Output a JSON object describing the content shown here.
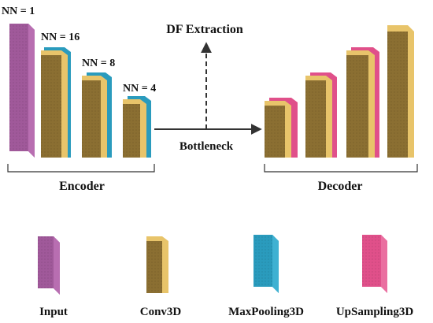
{
  "diagram": {
    "encoder_label": "Encoder",
    "decoder_label": "Decoder",
    "bottleneck_label": "Bottleneck",
    "df_extraction_label": "DF Extraction",
    "nn_labels": [
      "NN = 1",
      "NN = 16",
      "NN = 8",
      "NN = 4"
    ]
  },
  "legend": [
    {
      "name": "Input",
      "color": "#a0599a"
    },
    {
      "name": "Conv3D",
      "color": "#e8c46a"
    },
    {
      "name": "MaxPooling3D",
      "color": "#2a9bbd"
    },
    {
      "name": "UpSampling3D",
      "color": "#e0508a"
    }
  ],
  "colors": {
    "input_front": "#a0599a",
    "conv_front": "#8b6f32",
    "conv_side": "#e8c46a",
    "maxpool_side": "#2a9bbd",
    "upsample_side": "#e0508a",
    "arrow": "#333333"
  }
}
